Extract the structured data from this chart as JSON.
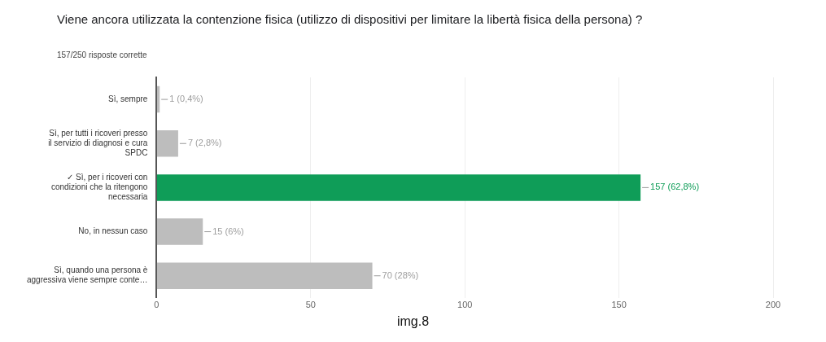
{
  "chart_data": {
    "type": "bar",
    "orientation": "horizontal",
    "title": "Viene ancora utilizzata la contenzione fisica (utilizzo di dispositivi per limitare la libertà fisica della persona) ?",
    "subtitle": "157/250 risposte corrette",
    "categories": [
      "Sì, sempre",
      "Sì, per tutti i ricoveri presso il servizio di diagnosi e cura SPDC",
      "✓ Sì, per i ricoveri con condizioni che la ritengono necessaria",
      "No, in nessun caso",
      "Sì, quando una persona è aggressiva viene sempre conte…"
    ],
    "values": [
      1,
      7,
      157,
      15,
      70
    ],
    "colors": [
      "#bdbdbd",
      "#bdbdbd",
      "#0f9d58",
      "#bdbdbd",
      "#bdbdbd"
    ],
    "value_labels": [
      "1 (0,4%)",
      "7 (2,8%)",
      "157 (62,8%)",
      "15 (6%)",
      "70 (28%)"
    ],
    "xlim": [
      0,
      200
    ],
    "xticks": [
      0,
      50,
      100,
      150,
      200
    ],
    "grid": "x",
    "annotations": [
      "img.8"
    ]
  }
}
